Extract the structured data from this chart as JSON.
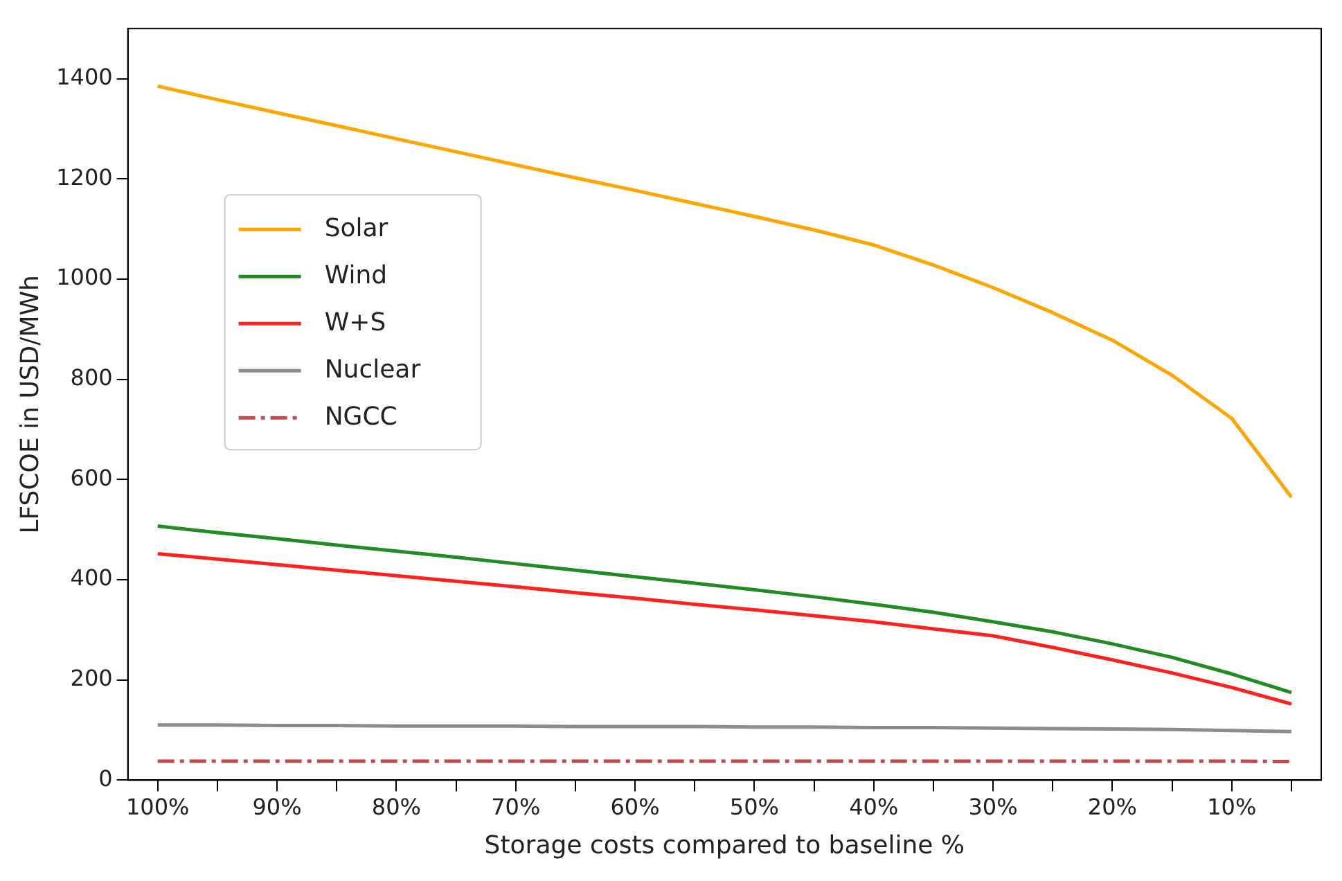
{
  "chart_data": {
    "type": "line",
    "xlabel": "Storage costs compared to baseline %",
    "ylabel": "LFSCOE in USD/MWh",
    "categories": [
      "100%",
      null,
      "90%",
      null,
      "80%",
      null,
      "70%",
      null,
      "60%",
      null,
      "50%",
      null,
      "40%",
      null,
      "30%",
      null,
      "20%",
      null,
      "10%",
      null
    ],
    "series": [
      {
        "name": "Solar",
        "color": "#ffa500",
        "values": [
          1385,
          1358,
          1332,
          1306,
          1280,
          1254,
          1228,
          1202,
          1177,
          1151,
          1125,
          1098,
          1068,
          1028,
          983,
          933,
          878,
          808,
          722,
          565
        ]
      },
      {
        "name": "Wind",
        "color": "#228b22",
        "values": [
          507,
          494,
          482,
          469,
          457,
          445,
          432,
          419,
          406,
          393,
          380,
          366,
          351,
          335,
          316,
          296,
          272,
          245,
          212,
          175
        ]
      },
      {
        "name": "W+S",
        "color": "#ff2020",
        "values": [
          452,
          441,
          430,
          419,
          408,
          397,
          386,
          374,
          363,
          351,
          340,
          328,
          316,
          302,
          288,
          265,
          240,
          214,
          185,
          152
        ]
      },
      {
        "name": "Nuclear",
        "color": "#8c8c8c",
        "values": [
          110,
          110,
          109,
          109,
          108,
          108,
          108,
          107,
          107,
          107,
          106,
          106,
          105,
          105,
          104,
          103,
          102,
          101,
          99,
          97
        ]
      },
      {
        "name": "NGCC",
        "color": "#bc4b4b",
        "line_style": "dashed",
        "values": [
          38,
          38,
          38,
          38,
          38,
          38,
          38,
          38,
          38,
          38,
          38,
          38,
          38,
          38,
          38,
          38,
          38,
          38,
          38,
          37
        ]
      }
    ],
    "ylim": [
      0,
      1500
    ],
    "yticks": [
      0,
      200,
      400,
      600,
      800,
      1000,
      1200,
      1400
    ],
    "grid": false,
    "legend": "left",
    "marker": "none"
  }
}
